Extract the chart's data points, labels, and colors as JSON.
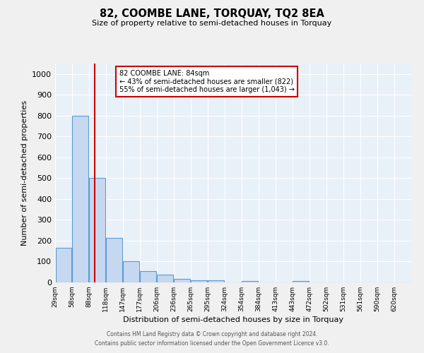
{
  "title": "82, COOMBE LANE, TORQUAY, TQ2 8EA",
  "subtitle": "Size of property relative to semi-detached houses in Torquay",
  "xlabel": "Distribution of semi-detached houses by size in Torquay",
  "ylabel": "Number of semi-detached properties",
  "bin_labels": [
    "29sqm",
    "58sqm",
    "88sqm",
    "118sqm",
    "147sqm",
    "177sqm",
    "206sqm",
    "236sqm",
    "265sqm",
    "295sqm",
    "324sqm",
    "354sqm",
    "384sqm",
    "413sqm",
    "443sqm",
    "472sqm",
    "502sqm",
    "531sqm",
    "561sqm",
    "590sqm",
    "620sqm"
  ],
  "bin_edges": [
    14.5,
    43.5,
    73.0,
    103.0,
    132.5,
    162.0,
    191.5,
    221.0,
    250.5,
    280.0,
    309.5,
    339.0,
    369.0,
    398.5,
    428.0,
    457.5,
    487.0,
    516.5,
    546.0,
    575.5,
    605.0,
    635.0
  ],
  "bar_heights": [
    165,
    800,
    500,
    215,
    100,
    55,
    38,
    18,
    10,
    10,
    0,
    8,
    0,
    0,
    8,
    0,
    0,
    0,
    0,
    0,
    0
  ],
  "bar_color": "#c5d8f0",
  "bar_edge_color": "#5b9bd5",
  "property_line_x": 84,
  "annotation_line1": "82 COOMBE LANE: 84sqm",
  "annotation_line2": "← 43% of semi-detached houses are smaller (822)",
  "annotation_line3": "55% of semi-detached houses are larger (1,043) →",
  "annotation_box_color": "#ffffff",
  "annotation_box_edge_color": "#cc0000",
  "red_line_color": "#cc0000",
  "ylim": [
    0,
    1050
  ],
  "yticks": [
    0,
    100,
    200,
    300,
    400,
    500,
    600,
    700,
    800,
    900,
    1000
  ],
  "plot_bg_color": "#e8f0f8",
  "fig_bg_color": "#f0f0f0",
  "footer_line1": "Contains HM Land Registry data © Crown copyright and database right 2024.",
  "footer_line2": "Contains public sector information licensed under the Open Government Licence v3.0."
}
